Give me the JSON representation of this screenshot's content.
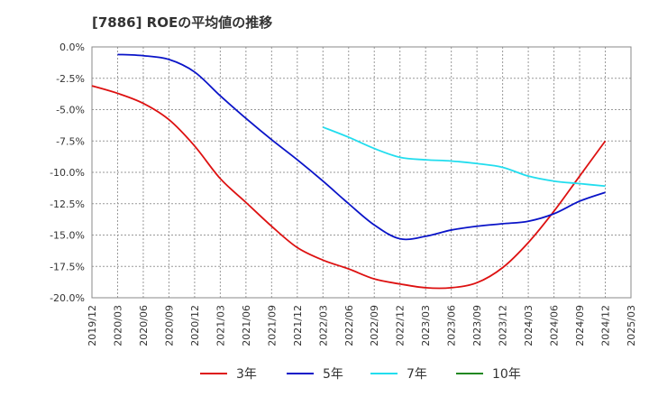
{
  "chart_data": {
    "type": "line",
    "title": "[7886]  ROEの平均値の推移",
    "xlabel": "",
    "ylabel": "",
    "ylim": [
      -20,
      0
    ],
    "y_ticks": [
      0,
      -2.5,
      -5,
      -7.5,
      -10,
      -12.5,
      -15,
      -17.5,
      -20
    ],
    "y_tick_labels": [
      "0.0%",
      "-2.5%",
      "-5.0%",
      "-7.5%",
      "-10.0%",
      "-12.5%",
      "-15.0%",
      "-17.5%",
      "-20.0%"
    ],
    "categories": [
      "2019/12",
      "2020/03",
      "2020/06",
      "2020/09",
      "2020/12",
      "2021/03",
      "2021/06",
      "2021/09",
      "2021/12",
      "2022/03",
      "2022/06",
      "2022/09",
      "2022/12",
      "2023/03",
      "2023/06",
      "2023/09",
      "2023/12",
      "2024/03",
      "2024/06",
      "2024/09",
      "2024/12",
      "2025/03"
    ],
    "grid": true,
    "legend_position": "bottom",
    "series": [
      {
        "name": "3年",
        "color": "#dd1111",
        "values": [
          -3.1,
          -3.7,
          -4.5,
          -5.8,
          -7.9,
          -10.5,
          -12.4,
          -14.3,
          -16.0,
          -17.0,
          -17.7,
          -18.5,
          -18.9,
          -19.2,
          -19.2,
          -18.8,
          -17.6,
          -15.6,
          -13.1,
          -10.3,
          -7.5,
          null
        ]
      },
      {
        "name": "5年",
        "color": "#0a14c8",
        "values": [
          null,
          -0.6,
          -0.7,
          -1.0,
          -2.0,
          -3.9,
          -5.7,
          -7.4,
          -9.0,
          -10.7,
          -12.5,
          -14.2,
          -15.3,
          -15.1,
          -14.6,
          -14.3,
          -14.1,
          -13.9,
          -13.3,
          -12.3,
          -11.6,
          null
        ]
      },
      {
        "name": "7年",
        "color": "#22ddee",
        "values": [
          null,
          null,
          null,
          null,
          null,
          null,
          null,
          null,
          null,
          -6.4,
          -7.2,
          -8.1,
          -8.8,
          -9.0,
          -9.1,
          -9.3,
          -9.6,
          -10.3,
          -10.7,
          -10.9,
          -11.1,
          null
        ]
      },
      {
        "name": "10年",
        "color": "#228822",
        "values": [
          null,
          null,
          null,
          null,
          null,
          null,
          null,
          null,
          null,
          null,
          null,
          null,
          null,
          null,
          null,
          null,
          null,
          null,
          null,
          null,
          null,
          null
        ]
      }
    ]
  }
}
